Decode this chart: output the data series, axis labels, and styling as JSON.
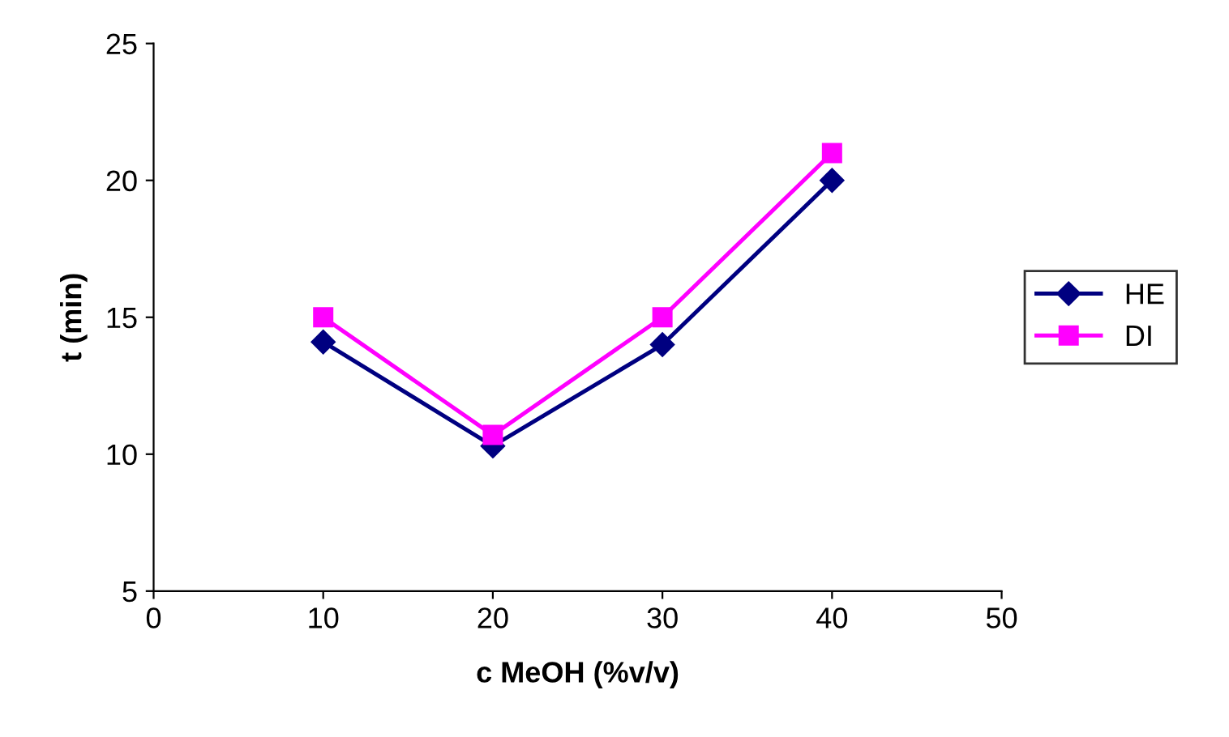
{
  "chart_data": {
    "type": "line",
    "xlabel": "c MeOH (%v/v)",
    "ylabel": "t (min)",
    "x": [
      10,
      20,
      30,
      40
    ],
    "series": [
      {
        "name": "HE",
        "color": "#000080",
        "marker": "diamond",
        "values": [
          14.1,
          10.3,
          14.0,
          20.0
        ]
      },
      {
        "name": "DI",
        "color": "#ff00ff",
        "marker": "square",
        "values": [
          15.0,
          10.7,
          15.0,
          21.0
        ]
      }
    ],
    "xlim": [
      0,
      50
    ],
    "xticks": [
      0,
      10,
      20,
      30,
      40,
      50
    ],
    "ylim": [
      5,
      25
    ],
    "yticks": [
      5,
      10,
      15,
      20,
      25
    ],
    "grid": false,
    "legend": "right",
    "line_style": "solid"
  }
}
